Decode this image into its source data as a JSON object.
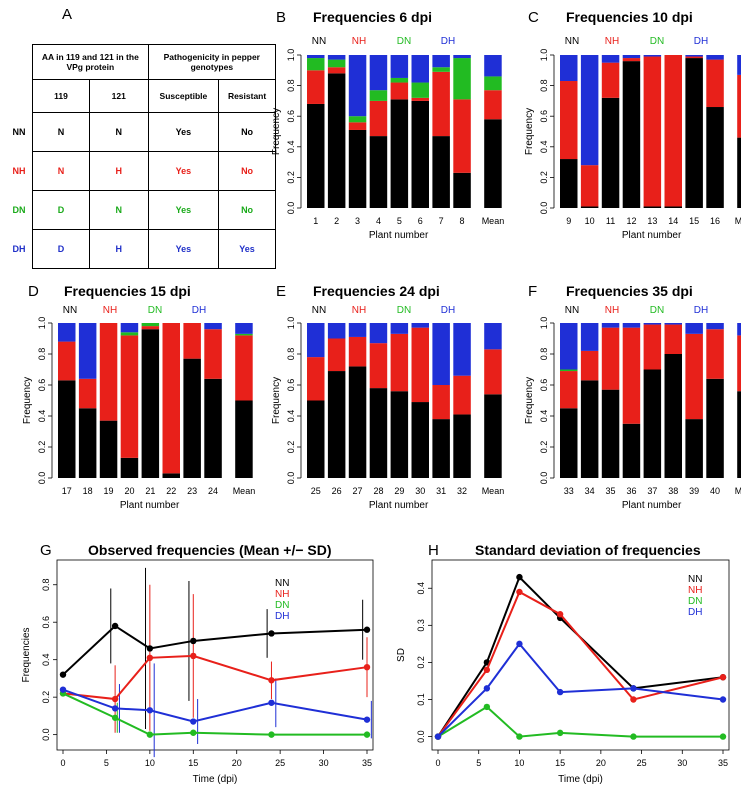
{
  "panel_a": {
    "letter": "A",
    "header_aa": "AA in 119 and 121 in the VPg protein",
    "header_path": "Pathogenicity in pepper genotypes",
    "sub_119": "119",
    "sub_121": "121",
    "sub_susceptible": "Susceptible",
    "sub_resistant": "Resistant",
    "rows": [
      {
        "label": "NN",
        "a119": "N",
        "a121": "N",
        "susceptible": "Yes",
        "resistant": "No",
        "color": "#000000"
      },
      {
        "label": "NH",
        "a119": "N",
        "a121": "H",
        "susceptible": "Yes",
        "resistant": "No",
        "color": "#e8201a"
      },
      {
        "label": "DN",
        "a119": "D",
        "a121": "N",
        "susceptible": "Yes",
        "resistant": "No",
        "color": "#1aaa1a"
      },
      {
        "label": "DH",
        "a119": "D",
        "a121": "H",
        "susceptible": "Yes",
        "resistant": "Yes",
        "color": "#2030c8"
      }
    ]
  },
  "colors": {
    "NN": "#000000",
    "NH": "#e8201a",
    "DN": "#22bb22",
    "DH": "#1f2fd6"
  },
  "genotype_labels": [
    "NN",
    "NH",
    "DN",
    "DH"
  ],
  "chart_data": [
    {
      "type": "bar",
      "letter": "B",
      "title": "Frequencies  6  dpi",
      "xlabel": "Plant number",
      "ylabel": "Frequency",
      "ylim": [
        0,
        1
      ],
      "yticks": [
        "0.0",
        "0.2",
        "0.4",
        "0.6",
        "0.8",
        "1.0"
      ],
      "categories": [
        "1",
        "2",
        "3",
        "4",
        "5",
        "6",
        "7",
        "8",
        "Mean"
      ],
      "series": [
        {
          "name": "NN",
          "values": [
            0.68,
            0.88,
            0.51,
            0.47,
            0.71,
            0.7,
            0.47,
            0.23,
            0.58
          ]
        },
        {
          "name": "NH",
          "values": [
            0.22,
            0.04,
            0.05,
            0.23,
            0.11,
            0.02,
            0.42,
            0.48,
            0.19
          ]
        },
        {
          "name": "DN",
          "values": [
            0.08,
            0.05,
            0.04,
            0.07,
            0.03,
            0.1,
            0.03,
            0.27,
            0.09
          ]
        },
        {
          "name": "DH",
          "values": [
            0.02,
            0.03,
            0.4,
            0.23,
            0.15,
            0.18,
            0.08,
            0.02,
            0.14
          ]
        }
      ]
    },
    {
      "type": "bar",
      "letter": "C",
      "title": "Frequencies  10  dpi",
      "xlabel": "Plant number",
      "ylabel": "Frequency",
      "ylim": [
        0,
        1
      ],
      "yticks": [
        "0.0",
        "0.2",
        "0.4",
        "0.6",
        "0.8",
        "1.0"
      ],
      "categories": [
        "9",
        "10",
        "11",
        "12",
        "13",
        "14",
        "15",
        "16",
        "Mean"
      ],
      "series": [
        {
          "name": "NN",
          "values": [
            0.32,
            0.01,
            0.72,
            0.96,
            0.01,
            0.01,
            0.98,
            0.66,
            0.46
          ]
        },
        {
          "name": "NH",
          "values": [
            0.51,
            0.27,
            0.23,
            0.02,
            0.98,
            0.99,
            0.01,
            0.31,
            0.41
          ]
        },
        {
          "name": "DN",
          "values": [
            0.0,
            0.0,
            0.0,
            0.0,
            0.0,
            0.0,
            0.0,
            0.0,
            0.0
          ]
        },
        {
          "name": "DH",
          "values": [
            0.17,
            0.72,
            0.05,
            0.02,
            0.01,
            0.0,
            0.01,
            0.03,
            0.13
          ]
        }
      ]
    },
    {
      "type": "bar",
      "letter": "D",
      "title": "Frequencies  15  dpi",
      "xlabel": "Plant number",
      "ylabel": "Frequency",
      "ylim": [
        0,
        1
      ],
      "yticks": [
        "0.0",
        "0.2",
        "0.4",
        "0.6",
        "0.8",
        "1.0"
      ],
      "categories": [
        "17",
        "18",
        "19",
        "20",
        "21",
        "22",
        "23",
        "24",
        "Mean"
      ],
      "series": [
        {
          "name": "NN",
          "values": [
            0.63,
            0.45,
            0.37,
            0.13,
            0.96,
            0.03,
            0.77,
            0.64,
            0.5
          ]
        },
        {
          "name": "NH",
          "values": [
            0.25,
            0.19,
            0.63,
            0.79,
            0.02,
            0.97,
            0.23,
            0.32,
            0.42
          ]
        },
        {
          "name": "DN",
          "values": [
            0.0,
            0.0,
            0.0,
            0.02,
            0.02,
            0.0,
            0.0,
            0.0,
            0.01
          ]
        },
        {
          "name": "DH",
          "values": [
            0.12,
            0.36,
            0.0,
            0.06,
            0.0,
            0.0,
            0.0,
            0.04,
            0.07
          ]
        }
      ]
    },
    {
      "type": "bar",
      "letter": "E",
      "title": "Frequencies  24  dpi",
      "xlabel": "Plant number",
      "ylabel": "Frequency",
      "ylim": [
        0,
        1
      ],
      "yticks": [
        "0.0",
        "0.2",
        "0.4",
        "0.6",
        "0.8",
        "1.0"
      ],
      "categories": [
        "25",
        "26",
        "27",
        "28",
        "29",
        "30",
        "31",
        "32",
        "Mean"
      ],
      "series": [
        {
          "name": "NN",
          "values": [
            0.5,
            0.69,
            0.72,
            0.58,
            0.56,
            0.49,
            0.38,
            0.41,
            0.54
          ]
        },
        {
          "name": "NH",
          "values": [
            0.28,
            0.21,
            0.19,
            0.29,
            0.37,
            0.48,
            0.22,
            0.25,
            0.29
          ]
        },
        {
          "name": "DN",
          "values": [
            0.0,
            0.0,
            0.0,
            0.0,
            0.0,
            0.0,
            0.0,
            0.0,
            0.0
          ]
        },
        {
          "name": "DH",
          "values": [
            0.22,
            0.1,
            0.09,
            0.13,
            0.07,
            0.03,
            0.4,
            0.34,
            0.17
          ]
        }
      ]
    },
    {
      "type": "bar",
      "letter": "F",
      "title": "Frequencies  35  dpi",
      "xlabel": "Plant number",
      "ylabel": "Frequency",
      "ylim": [
        0,
        1
      ],
      "yticks": [
        "0.0",
        "0.2",
        "0.4",
        "0.6",
        "0.8",
        "1.0"
      ],
      "categories": [
        "33",
        "34",
        "35",
        "36",
        "37",
        "38",
        "39",
        "40",
        "Mean"
      ],
      "series": [
        {
          "name": "NN",
          "values": [
            0.45,
            0.63,
            0.57,
            0.35,
            0.7,
            0.8,
            0.38,
            0.64,
            0.56
          ]
        },
        {
          "name": "NH",
          "values": [
            0.24,
            0.19,
            0.4,
            0.62,
            0.29,
            0.19,
            0.55,
            0.32,
            0.36
          ]
        },
        {
          "name": "DN",
          "values": [
            0.01,
            0.0,
            0.0,
            0.0,
            0.0,
            0.0,
            0.0,
            0.0,
            0.0
          ]
        },
        {
          "name": "DH",
          "values": [
            0.3,
            0.18,
            0.03,
            0.03,
            0.01,
            0.01,
            0.07,
            0.04,
            0.08
          ]
        }
      ]
    },
    {
      "type": "line",
      "letter": "G",
      "title": "Observed frequencies (Mean +/− SD)",
      "xlabel": "Time (dpi)",
      "ylabel": "Frequencies",
      "xlim": [
        0,
        35
      ],
      "ylim": [
        -0.05,
        0.9
      ],
      "xticks": [
        "0",
        "5",
        "10",
        "15",
        "20",
        "25",
        "30",
        "35"
      ],
      "yticks": [
        "0.0",
        "0.2",
        "0.4",
        "0.6",
        "0.8"
      ],
      "series": [
        {
          "name": "NN",
          "x": [
            0,
            6,
            10,
            15,
            24,
            35
          ],
          "values": [
            0.32,
            0.58,
            0.46,
            0.5,
            0.54,
            0.56
          ],
          "sd": [
            0,
            0.2,
            0.43,
            0.32,
            0.13,
            0.16
          ],
          "offset": -0.5
        },
        {
          "name": "NH",
          "x": [
            0,
            6,
            10,
            15,
            24,
            35
          ],
          "values": [
            0.22,
            0.19,
            0.41,
            0.42,
            0.29,
            0.36
          ],
          "sd": [
            0,
            0.18,
            0.39,
            0.33,
            0.1,
            0.16
          ],
          "offset": 0
        },
        {
          "name": "DN",
          "x": [
            0,
            6,
            10,
            15,
            24,
            35
          ],
          "values": [
            0.22,
            0.09,
            0.0,
            0.01,
            0.0,
            0.0
          ],
          "sd": [
            0,
            0.08,
            0.0,
            0.01,
            0.0,
            0.0
          ],
          "offset": 0.25
        },
        {
          "name": "DH",
          "x": [
            0,
            6,
            10,
            15,
            24,
            35
          ],
          "values": [
            0.24,
            0.14,
            0.13,
            0.07,
            0.17,
            0.08
          ],
          "sd": [
            0,
            0.13,
            0.25,
            0.12,
            0.13,
            0.1
          ],
          "offset": 0.5
        }
      ]
    },
    {
      "type": "line",
      "letter": "H",
      "title": "Standard deviation of frequencies",
      "xlabel": "Time (dpi)",
      "ylabel": "SD",
      "xlim": [
        0,
        35
      ],
      "ylim": [
        -0.02,
        0.46
      ],
      "xticks": [
        "0",
        "5",
        "10",
        "15",
        "20",
        "25",
        "30",
        "35"
      ],
      "yticks": [
        "0.0",
        "0.1",
        "0.2",
        "0.3",
        "0.4"
      ],
      "series": [
        {
          "name": "NN",
          "x": [
            0,
            6,
            10,
            15,
            24,
            35
          ],
          "values": [
            0.0,
            0.2,
            0.43,
            0.32,
            0.13,
            0.16
          ]
        },
        {
          "name": "NH",
          "x": [
            0,
            6,
            10,
            15,
            24,
            35
          ],
          "values": [
            0.0,
            0.18,
            0.39,
            0.33,
            0.1,
            0.16
          ]
        },
        {
          "name": "DN",
          "x": [
            0,
            6,
            10,
            15,
            24,
            35
          ],
          "values": [
            0.0,
            0.08,
            0.0,
            0.01,
            0.0,
            0.0
          ]
        },
        {
          "name": "DH",
          "x": [
            0,
            6,
            10,
            15,
            24,
            35
          ],
          "values": [
            0.0,
            0.13,
            0.25,
            0.12,
            0.13,
            0.1
          ]
        }
      ]
    }
  ]
}
